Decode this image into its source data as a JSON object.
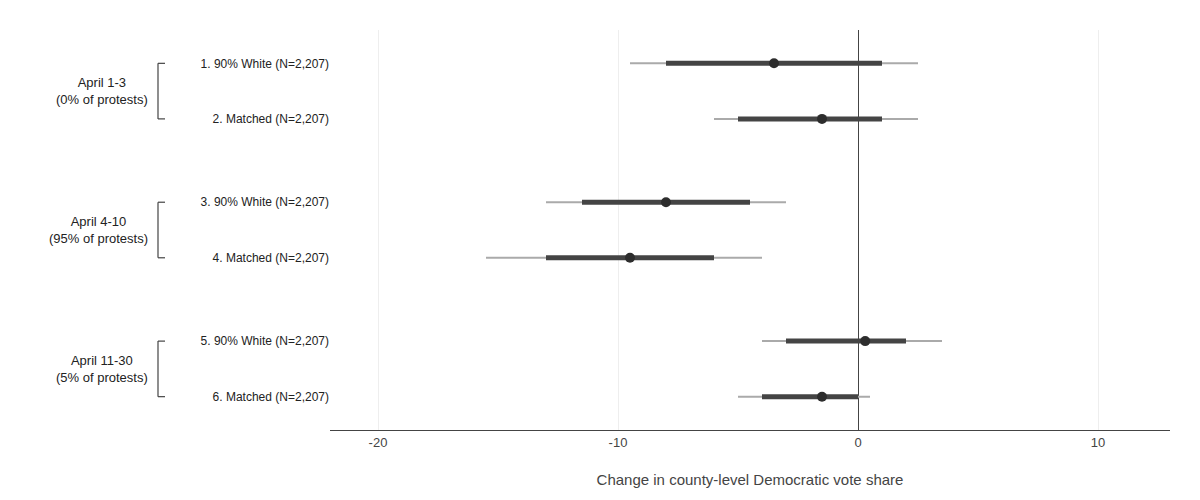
{
  "chart_data": {
    "type": "forest",
    "xlabel": "Change in county-level Democratic vote share",
    "categories": [
      "1. 90% White (N=2,207)",
      "2. Matched (N=2,207)",
      "3. 90% White (N=2,207)",
      "4. Matched (N=2,207)",
      "5. 90% White (N=2,207)",
      "6. Matched (N=2,207)"
    ],
    "groups": [
      {
        "label": "April 1-3\n(0% of protests)",
        "categories": [
          "1. 90% White (N=2,207)",
          "2. Matched (N=2,207)"
        ]
      },
      {
        "label": "April 4-10\n(95% of protests)",
        "categories": [
          "3. 90% White (N=2,207)",
          "4. Matched (N=2,207)"
        ]
      },
      {
        "label": "April 11-30\n(5% of protests)",
        "categories": [
          "5. 90% White (N=2,207)",
          "6. Matched (N=2,207)"
        ]
      }
    ],
    "series": [
      {
        "type": "interval",
        "color": "#aaaaaa",
        "lo": [
          -9.5,
          -6.0,
          -13.0,
          -15.5,
          -4.0,
          -5.0
        ],
        "hi": [
          2.5,
          2.5,
          -3.0,
          -4.0,
          3.5,
          0.5
        ]
      },
      {
        "type": "interval",
        "color": "#444444",
        "lo": [
          -8.0,
          -5.0,
          -11.5,
          -13.0,
          -3.0,
          -4.0
        ],
        "hi": [
          1.0,
          1.0,
          -4.5,
          -6.0,
          2.0,
          0.0
        ]
      },
      {
        "type": "dot",
        "color": "#2d2d2d",
        "values": [
          -3.5,
          -1.5,
          -8.0,
          -9.5,
          0.3,
          -1.5
        ]
      }
    ],
    "xlim": [
      -22,
      13
    ],
    "xticks": [
      -20,
      -10,
      0,
      10
    ],
    "grid": true
  }
}
